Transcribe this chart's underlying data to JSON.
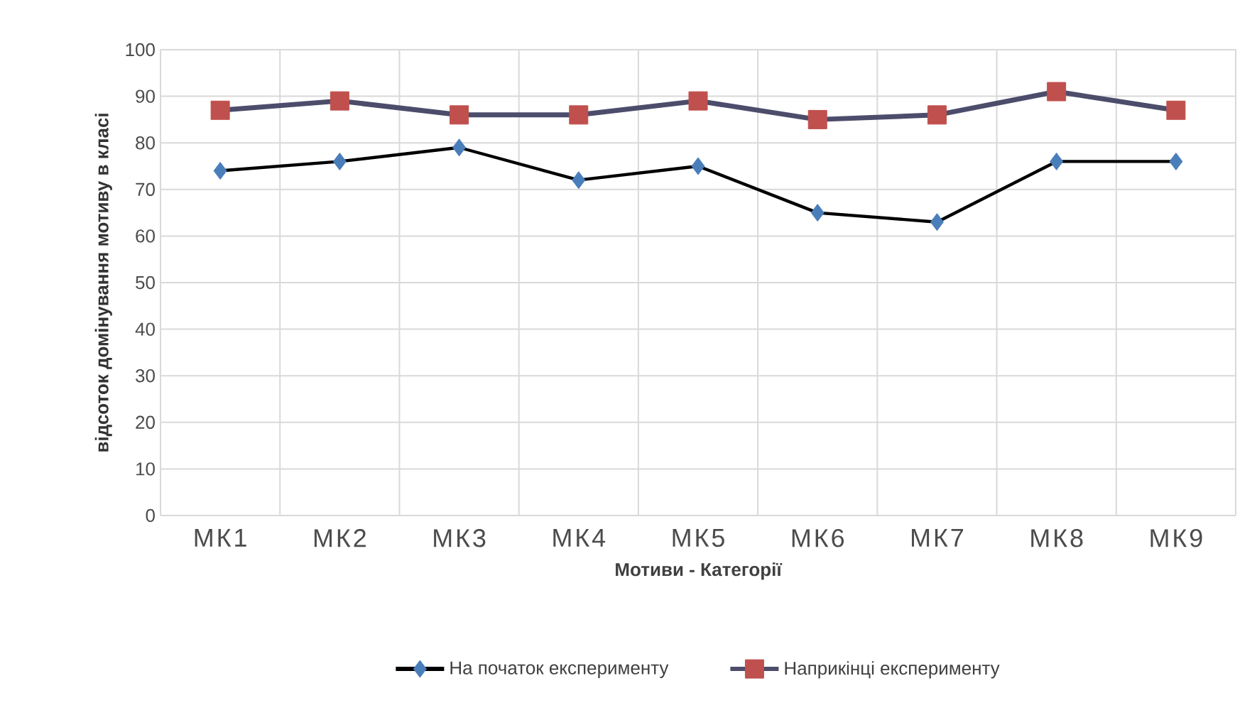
{
  "chart_data": {
    "type": "line",
    "xlabel": "Мотиви - Категорії",
    "ylabel": "відсоток домінування мотиву в класі",
    "categories": [
      "МК1",
      "МК2",
      "МК3",
      "МК4",
      "МК5",
      "МК6",
      "МК7",
      "МК8",
      "МК9"
    ],
    "series": [
      {
        "name": "На початок експерименту",
        "color": "#4a7ebb",
        "marker": "diamond",
        "values": [
          74,
          76,
          79,
          72,
          75,
          65,
          63,
          76,
          76
        ]
      },
      {
        "name": "Наприкінці експерименту",
        "color": "#c0504d",
        "marker": "square",
        "values": [
          87,
          89,
          86,
          86,
          89,
          85,
          86,
          91,
          87
        ]
      }
    ],
    "ylim": [
      0,
      100
    ],
    "yticks": [
      0,
      10,
      20,
      30,
      40,
      50,
      60,
      70,
      80,
      90,
      100
    ],
    "grid": true,
    "legend": "bottom",
    "line_style": "solid"
  }
}
